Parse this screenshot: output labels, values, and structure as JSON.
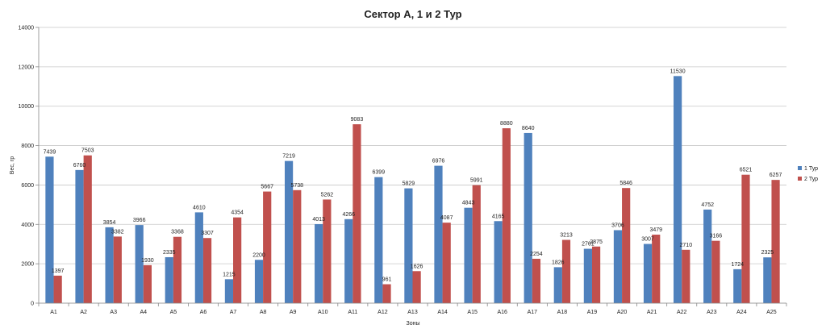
{
  "chart_data": {
    "type": "bar",
    "title": "Сектор А, 1 и 2 Тур",
    "xlabel": "Зоны",
    "ylabel": "Вес, гр",
    "ylim": [
      0,
      14000
    ],
    "yticks": [
      0,
      2000,
      4000,
      6000,
      8000,
      10000,
      12000,
      14000
    ],
    "grid": true,
    "legend_position": "right",
    "categories": [
      "А1",
      "А2",
      "А3",
      "А4",
      "А5",
      "А6",
      "А7",
      "А8",
      "А9",
      "А10",
      "А11",
      "А12",
      "А13",
      "А14",
      "А15",
      "А16",
      "А17",
      "А18",
      "А19",
      "А20",
      "А21",
      "А22",
      "А23",
      "А24",
      "А25"
    ],
    "series": [
      {
        "name": "1 Тур",
        "color": "#4f81bd",
        "values": [
          7439,
          6760,
          3854,
          3966,
          2335,
          4610,
          1215,
          2200,
          7219,
          4013,
          4266,
          6399,
          5829,
          6976,
          4843,
          4165,
          8640,
          1826,
          2761,
          3706,
          3007,
          11530,
          4752,
          1724,
          2325
        ]
      },
      {
        "name": "2 Тур",
        "color": "#c0504d",
        "values": [
          1397,
          7503,
          3382,
          1930,
          3368,
          3307,
          4354,
          5667,
          5738,
          5262,
          9083,
          961,
          1626,
          4087,
          5991,
          8880,
          2254,
          3213,
          2875,
          5846,
          3479,
          2710,
          3166,
          6521,
          6257
        ]
      }
    ]
  }
}
